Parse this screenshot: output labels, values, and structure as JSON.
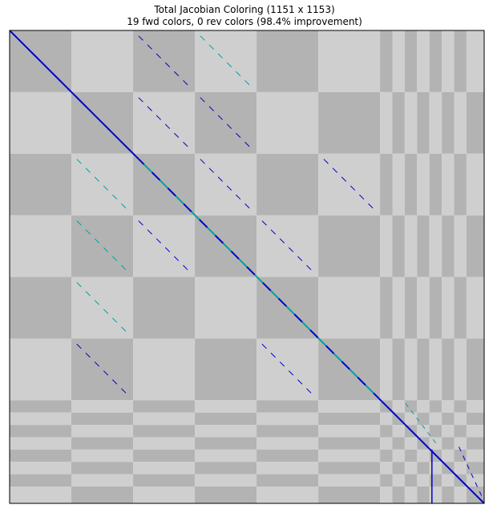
{
  "chart_data": {
    "type": "heatmap",
    "title": "Total Jacobian Coloring (1151 x 1153)",
    "subtitle": "19 fwd colors, 0 rev colors (98.4% improvement)",
    "rows": 1151,
    "cols": 1153,
    "fwd_colors": 19,
    "rev_colors": 0,
    "improvement_pct": 98.4,
    "ticks_visible": false,
    "colors": {
      "block_dark": "#b3b3b3",
      "block_light": "#cfcfcf",
      "nonzero_fwd": "#0000cc",
      "nonzero_fwd_alt": "#00a0a0",
      "frame": "#000000"
    },
    "block_boundaries_rows": [
      0,
      150,
      300,
      450,
      600,
      750,
      900,
      930,
      960,
      990,
      1020,
      1050,
      1080,
      1110,
      1151
    ],
    "block_boundaries_cols": [
      0,
      150,
      300,
      450,
      600,
      750,
      900,
      930,
      960,
      990,
      1020,
      1050,
      1080,
      1110,
      1153
    ],
    "diagonal_segments": [
      {
        "r0": 0,
        "c0": 0,
        "r1": 1151,
        "c1": 1153,
        "color": "fwd"
      }
    ],
    "offdiag_segments": [
      {
        "r0": 10,
        "c0": 310,
        "r1": 140,
        "c1": 440
      },
      {
        "r0": 10,
        "c0": 460,
        "r1": 140,
        "c1": 590
      },
      {
        "r0": 160,
        "c0": 310,
        "r1": 290,
        "c1": 440
      },
      {
        "r0": 160,
        "c0": 460,
        "r1": 290,
        "c1": 590
      },
      {
        "r0": 310,
        "c0": 160,
        "r1": 440,
        "c1": 290
      },
      {
        "r0": 310,
        "c0": 460,
        "r1": 440,
        "c1": 590
      },
      {
        "r0": 310,
        "c0": 760,
        "r1": 440,
        "c1": 890
      },
      {
        "r0": 460,
        "c0": 160,
        "r1": 590,
        "c1": 290
      },
      {
        "r0": 460,
        "c0": 310,
        "r1": 590,
        "c1": 440
      },
      {
        "r0": 460,
        "c0": 610,
        "r1": 590,
        "c1": 740
      },
      {
        "r0": 610,
        "c0": 160,
        "r1": 740,
        "c1": 290
      },
      {
        "r0": 760,
        "c0": 160,
        "r1": 890,
        "c1": 290
      },
      {
        "r0": 760,
        "c0": 610,
        "r1": 890,
        "c1": 740
      },
      {
        "r0": 905,
        "c0": 960,
        "r1": 1010,
        "c1": 1040
      },
      {
        "r0": 1010,
        "c0": 1090,
        "r1": 1140,
        "c1": 1150
      }
    ],
    "vertical_segments": [
      {
        "c": 1026,
        "r0": 1020,
        "r1": 1151
      }
    ]
  }
}
